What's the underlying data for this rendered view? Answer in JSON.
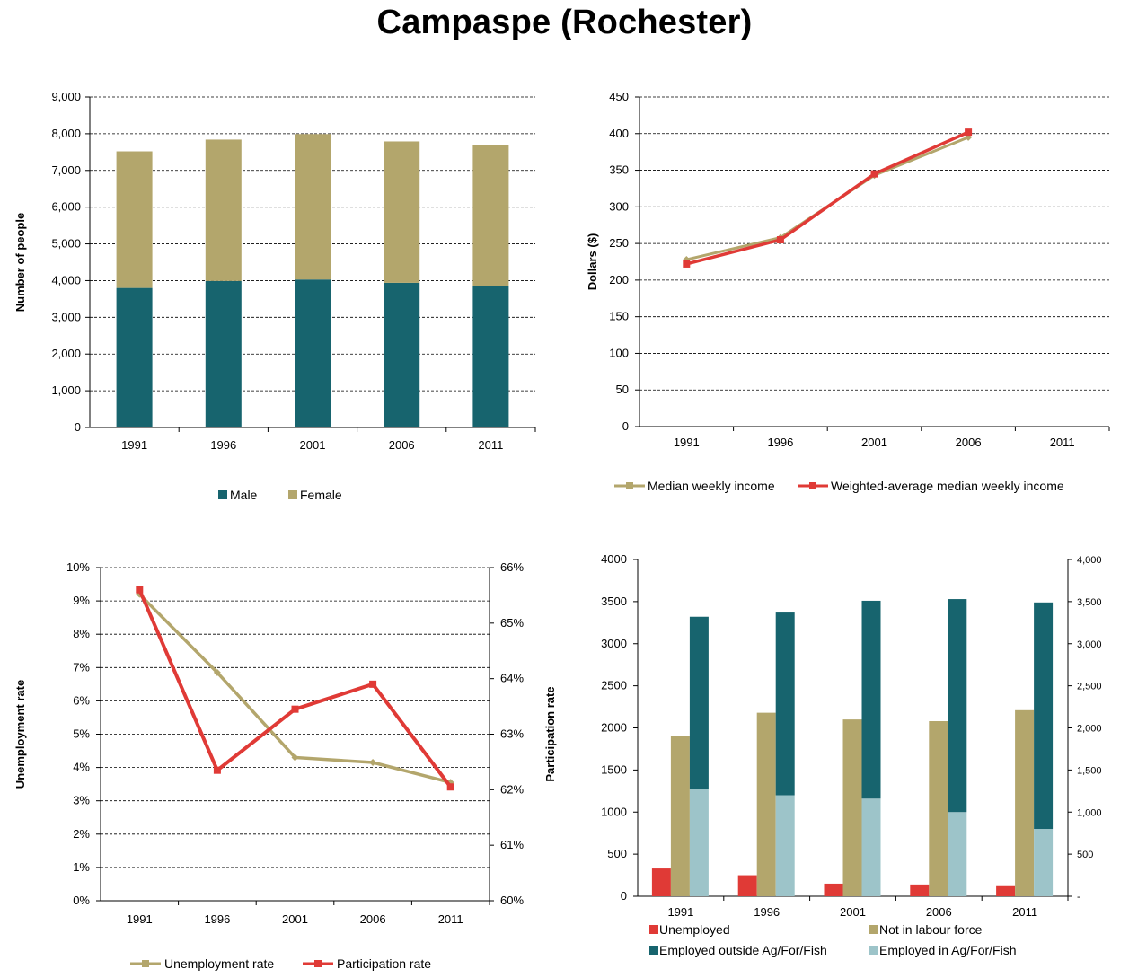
{
  "title": "Campaspe (Rochester)",
  "colors": {
    "male": "#17646E",
    "female": "#B3A66C",
    "median_income": "#B3A66C",
    "weighted_income": "#E03A36",
    "unemployment": "#B3A66C",
    "participation": "#E03A36",
    "unemployed": "#E03A36",
    "not_in_labour_force": "#B3A66C",
    "employed_outside": "#17646E",
    "employed_in": "#9DC4C9"
  },
  "chart_data": [
    {
      "id": "population",
      "type": "bar",
      "stacked": true,
      "categories": [
        "1991",
        "1996",
        "2001",
        "2006",
        "2011"
      ],
      "ylabel": "Number of people",
      "ylim": [
        0,
        9000
      ],
      "yticks": [
        "0",
        "1,000",
        "2,000",
        "3,000",
        "4,000",
        "5,000",
        "6,000",
        "7,000",
        "8,000",
        "9,000"
      ],
      "grid": true,
      "legend_position": "bottom",
      "series": [
        {
          "name": "Male",
          "values": [
            3800,
            3990,
            4030,
            3940,
            3850
          ]
        },
        {
          "name": "Female",
          "values": [
            3720,
            3850,
            3960,
            3850,
            3830
          ]
        }
      ]
    },
    {
      "id": "income",
      "type": "line",
      "categories": [
        "1991",
        "1996",
        "2001",
        "2006",
        "2011"
      ],
      "ylabel": "Dollars ($)",
      "ylim": [
        0,
        450
      ],
      "yticks": [
        "0",
        "50",
        "100",
        "150",
        "200",
        "250",
        "300",
        "350",
        "400",
        "450"
      ],
      "grid": true,
      "legend_position": "bottom",
      "series": [
        {
          "name": "Median weekly income",
          "values": [
            228,
            258,
            343,
            395,
            null
          ]
        },
        {
          "name": "Weighted-average median weekly income",
          "values": [
            222,
            255,
            345,
            402,
            null
          ]
        }
      ]
    },
    {
      "id": "rates",
      "type": "line",
      "categories": [
        "1991",
        "1996",
        "2001",
        "2006",
        "2011"
      ],
      "ylabel": "Unemployment rate",
      "ylabel_right": "Participation rate",
      "ylim": [
        0,
        10
      ],
      "ylim_right": [
        60,
        66
      ],
      "yticks": [
        "0%",
        "1%",
        "2%",
        "3%",
        "4%",
        "5%",
        "6%",
        "7%",
        "8%",
        "9%",
        "10%"
      ],
      "yticks_right": [
        "60%",
        "61%",
        "62%",
        "63%",
        "64%",
        "65%",
        "66%"
      ],
      "grid": true,
      "legend_position": "bottom",
      "series": [
        {
          "name": "Unemployment rate",
          "axis": "left",
          "values": [
            9.2,
            6.85,
            4.3,
            4.15,
            3.55
          ]
        },
        {
          "name": "Participation rate",
          "axis": "right",
          "values": [
            65.6,
            62.35,
            63.45,
            63.9,
            62.05
          ]
        }
      ]
    },
    {
      "id": "labour",
      "type": "bar",
      "categories": [
        "1991",
        "1996",
        "2001",
        "2006",
        "2011"
      ],
      "ylim": [
        0,
        4000
      ],
      "yticks": [
        "0",
        "500",
        "1000",
        "1500",
        "2000",
        "2500",
        "3000",
        "3500",
        "4000"
      ],
      "yticks_right": [
        "-",
        "500",
        "1,000",
        "1,500",
        "2,000",
        "2,500",
        "3,000",
        "3,500",
        "4,000"
      ],
      "grid": false,
      "legend_position": "bottom",
      "series": [
        {
          "name": "Unemployed",
          "values": [
            330,
            250,
            150,
            140,
            120
          ]
        },
        {
          "name": "Not in labour force",
          "values": [
            1900,
            2180,
            2100,
            2080,
            2210
          ]
        },
        {
          "name": "Employed outside Ag/For/Fish",
          "values": [
            2040,
            2170,
            2350,
            2530,
            2690
          ],
          "stacked_on": "Employed in Ag/For/Fish"
        },
        {
          "name": "Employed in Ag/For/Fish",
          "values": [
            1280,
            1200,
            1160,
            1000,
            800
          ]
        }
      ]
    }
  ]
}
